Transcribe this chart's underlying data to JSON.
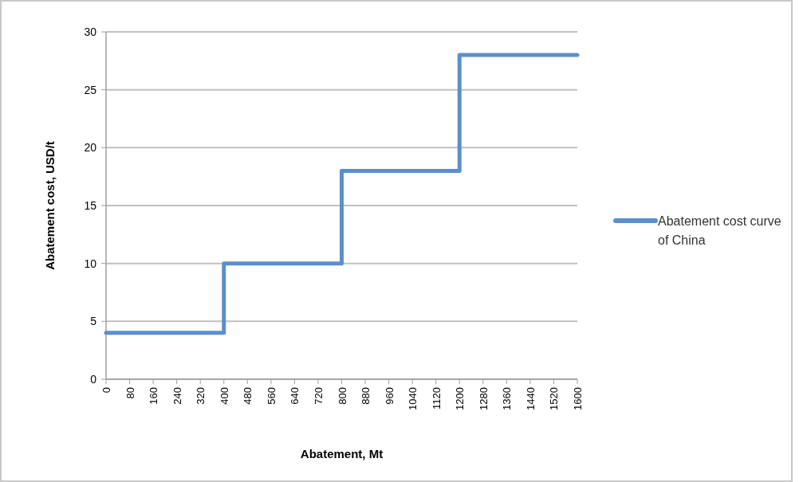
{
  "chart_data": {
    "type": "line",
    "xlabel": "Abatement, Mt",
    "ylabel": "Abatement cost, USD/t",
    "series": [
      {
        "name": "Abatement cost curve of China",
        "color": "#5b8fcb",
        "x": [
          0,
          400,
          400,
          800,
          800,
          1200,
          1200,
          1600
        ],
        "values": [
          4,
          4,
          10,
          10,
          18,
          18,
          28,
          28
        ]
      }
    ],
    "xlim": [
      0,
      1600
    ],
    "xticks": [
      0,
      80,
      160,
      240,
      320,
      400,
      480,
      560,
      640,
      720,
      800,
      880,
      960,
      1040,
      1120,
      1200,
      1280,
      1360,
      1440,
      1520,
      1600
    ],
    "ylim": [
      0,
      30
    ],
    "yticks": [
      0,
      5,
      10,
      15,
      20,
      25,
      30
    ],
    "grid": "y",
    "legend": "right",
    "line_style": "solid",
    "marker": "none"
  }
}
